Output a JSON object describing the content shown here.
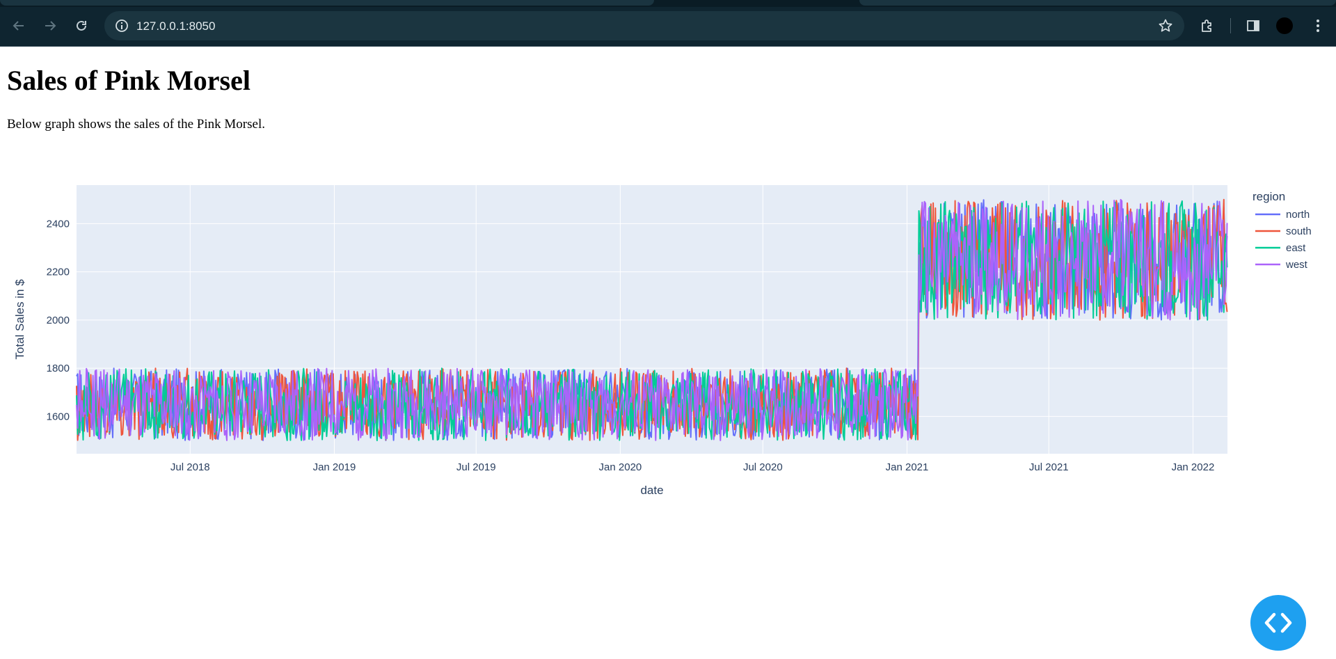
{
  "browser": {
    "url": "127.0.0.1:8050"
  },
  "page": {
    "title": "Sales of Pink Morsel",
    "description": "Below graph shows the sales of the Pink Morsel."
  },
  "colors": {
    "north": "#636efa",
    "south": "#ef553b",
    "east": "#00cc96",
    "west": "#ab63fa",
    "plot_bg": "#e5ecf6",
    "fab": "#1ea0f0"
  },
  "chart_data": {
    "type": "line",
    "xlabel": "date",
    "ylabel": "Total Sales in $",
    "legend_title": "region",
    "legend_position": "right",
    "grid": true,
    "xlim": [
      "2018-02-06",
      "2022-02-14"
    ],
    "ylim": [
      1445,
      2560
    ],
    "x_ticks": [
      {
        "date": "2018-07-01",
        "label": "Jul 2018"
      },
      {
        "date": "2019-01-01",
        "label": "Jan 2019"
      },
      {
        "date": "2019-07-01",
        "label": "Jul 2019"
      },
      {
        "date": "2020-01-01",
        "label": "Jan 2020"
      },
      {
        "date": "2020-07-01",
        "label": "Jul 2020"
      },
      {
        "date": "2021-01-01",
        "label": "Jan 2021"
      },
      {
        "date": "2021-07-01",
        "label": "Jul 2021"
      },
      {
        "date": "2022-01-01",
        "label": "Jan 2022"
      }
    ],
    "y_ticks": [
      1600,
      1800,
      2000,
      2200,
      2400
    ],
    "series": [
      {
        "name": "north",
        "values": [
          {
            "x": "2018-02-06",
            "y": 1580
          },
          {
            "x": "2018-07-01",
            "y": 1790
          },
          {
            "x": "2019-01-01",
            "y": 1520
          },
          {
            "x": "2019-07-01",
            "y": 1750
          },
          {
            "x": "2020-01-01",
            "y": 1540
          },
          {
            "x": "2020-07-01",
            "y": 1780
          },
          {
            "x": "2021-01-01",
            "y": 1530
          },
          {
            "x": "2021-01-15",
            "y": 1700
          },
          {
            "x": "2021-01-16",
            "y": 2150
          },
          {
            "x": "2021-07-01",
            "y": 2480
          },
          {
            "x": "2022-01-01",
            "y": 2020
          },
          {
            "x": "2022-02-14",
            "y": 2350
          }
        ]
      },
      {
        "name": "south",
        "values": [
          {
            "x": "2018-02-06",
            "y": 1700
          },
          {
            "x": "2018-07-01",
            "y": 1520
          },
          {
            "x": "2019-01-01",
            "y": 1770
          },
          {
            "x": "2019-07-01",
            "y": 1530
          },
          {
            "x": "2020-01-01",
            "y": 1790
          },
          {
            "x": "2020-07-01",
            "y": 1540
          },
          {
            "x": "2021-01-01",
            "y": 1760
          },
          {
            "x": "2021-01-15",
            "y": 1600
          },
          {
            "x": "2021-01-16",
            "y": 2400
          },
          {
            "x": "2021-07-01",
            "y": 2030
          },
          {
            "x": "2022-01-01",
            "y": 2460
          },
          {
            "x": "2022-02-14",
            "y": 2100
          }
        ]
      },
      {
        "name": "east",
        "values": [
          {
            "x": "2018-02-06",
            "y": 1620
          },
          {
            "x": "2018-07-01",
            "y": 1760
          },
          {
            "x": "2019-01-01",
            "y": 1560
          },
          {
            "x": "2019-07-01",
            "y": 1800
          },
          {
            "x": "2020-01-01",
            "y": 1510
          },
          {
            "x": "2020-07-01",
            "y": 1740
          },
          {
            "x": "2021-01-01",
            "y": 1580
          },
          {
            "x": "2021-01-15",
            "y": 1650
          },
          {
            "x": "2021-01-16",
            "y": 2300
          },
          {
            "x": "2021-07-01",
            "y": 2050
          },
          {
            "x": "2022-01-01",
            "y": 2420
          },
          {
            "x": "2022-02-14",
            "y": 2500
          }
        ]
      },
      {
        "name": "west",
        "values": [
          {
            "x": "2018-02-06",
            "y": 1650
          },
          {
            "x": "2018-07-01",
            "y": 1550
          },
          {
            "x": "2019-01-01",
            "y": 1790
          },
          {
            "x": "2019-07-01",
            "y": 1600
          },
          {
            "x": "2020-01-01",
            "y": 1720
          },
          {
            "x": "2020-07-01",
            "y": 1560
          },
          {
            "x": "2021-01-01",
            "y": 1740
          },
          {
            "x": "2021-01-15",
            "y": 1620
          },
          {
            "x": "2021-01-16",
            "y": 2380
          },
          {
            "x": "2021-07-01",
            "y": 2250
          },
          {
            "x": "2022-01-01",
            "y": 2150
          },
          {
            "x": "2022-02-14",
            "y": 2280
          }
        ]
      }
    ]
  },
  "icons": {
    "back": "arrow-left-icon",
    "forward": "arrow-right-icon",
    "reload": "reload-icon",
    "info": "info-icon",
    "star": "star-icon",
    "extensions": "puzzle-icon",
    "sidepanel": "side-panel-icon",
    "menu": "kebab-menu-icon",
    "devtools": "code-icon"
  }
}
